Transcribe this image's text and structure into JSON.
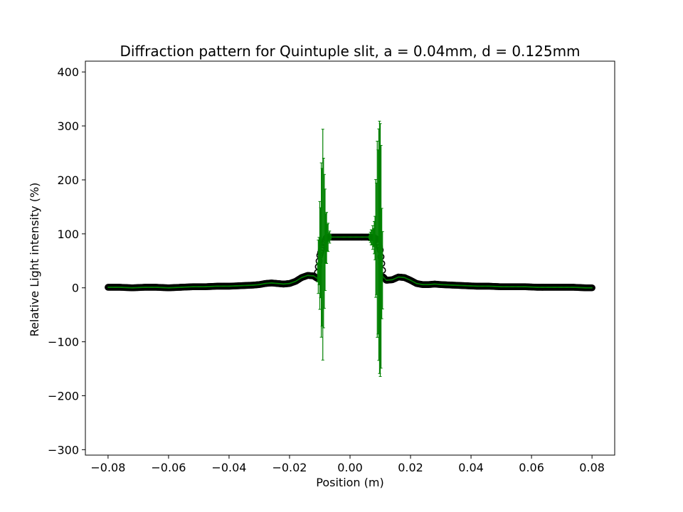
{
  "chart_data": {
    "type": "scatter",
    "title": "Diffraction pattern for Quintuple slit, a = 0.04mm, d = 0.125mm",
    "xlabel": "Position (m)",
    "ylabel": "Relative Light intensity (%)",
    "xlim": [
      -0.0875,
      0.0875
    ],
    "ylim": [
      -310,
      420
    ],
    "xticks": [
      -0.08,
      -0.06,
      -0.04,
      -0.02,
      0.0,
      0.02,
      0.04,
      0.06,
      0.08
    ],
    "xtick_labels": [
      "−0.08",
      "−0.06",
      "−0.04",
      "−0.02",
      "0.00",
      "0.02",
      "0.04",
      "0.06",
      "0.08"
    ],
    "yticks": [
      -300,
      -200,
      -100,
      0,
      100,
      200,
      300,
      400
    ],
    "ytick_labels": [
      "−300",
      "−200",
      "−100",
      "0",
      "100",
      "200",
      "300",
      "400"
    ],
    "grid": false,
    "marker_color": "#000000",
    "errorbar_color": "#008000",
    "series": [
      {
        "x": [
          -0.08,
          -0.076,
          -0.072,
          -0.068,
          -0.064,
          -0.06,
          -0.056,
          -0.052,
          -0.048,
          -0.044,
          -0.04,
          -0.036,
          -0.032,
          -0.03,
          -0.028,
          -0.026,
          -0.024,
          -0.022,
          -0.02,
          -0.018,
          -0.016,
          -0.014,
          -0.012,
          -0.011,
          -0.01,
          -0.009,
          -0.008,
          -0.007,
          -0.006,
          -0.004,
          -0.002,
          0.0,
          0.002,
          0.004,
          0.006,
          0.008,
          0.009,
          0.01,
          0.011,
          0.012,
          0.014,
          0.016,
          0.018,
          0.02,
          0.022,
          0.024,
          0.026,
          0.028,
          0.03,
          0.034,
          0.038,
          0.042,
          0.046,
          0.05,
          0.054,
          0.058,
          0.062,
          0.066,
          0.07,
          0.074,
          0.078,
          0.08
        ],
        "y": [
          1,
          1,
          0,
          1,
          1,
          0,
          1,
          2,
          2,
          3,
          3,
          4,
          5,
          6,
          8,
          9,
          8,
          7,
          8,
          12,
          19,
          23,
          22,
          18,
          60,
          80,
          92,
          94,
          94,
          94,
          94,
          94,
          94,
          94,
          94,
          93,
          90,
          70,
          20,
          14,
          15,
          20,
          19,
          14,
          8,
          6,
          6,
          7,
          6,
          5,
          4,
          3,
          3,
          2,
          2,
          2,
          1,
          1,
          1,
          1,
          0,
          0
        ],
        "yerr": [
          0,
          0,
          0,
          0,
          0,
          0,
          0,
          0,
          0,
          0,
          0,
          0,
          0,
          0,
          0,
          0,
          0,
          0,
          0,
          0,
          0,
          0,
          0,
          0,
          100,
          230,
          60,
          15,
          0,
          0,
          0,
          0,
          0,
          0,
          0,
          30,
          190,
          290,
          0,
          0,
          0,
          0,
          0,
          0,
          0,
          0,
          0,
          0,
          0,
          0,
          0,
          0,
          0,
          0,
          0,
          0,
          0,
          0,
          0,
          0,
          0,
          0
        ]
      }
    ]
  }
}
